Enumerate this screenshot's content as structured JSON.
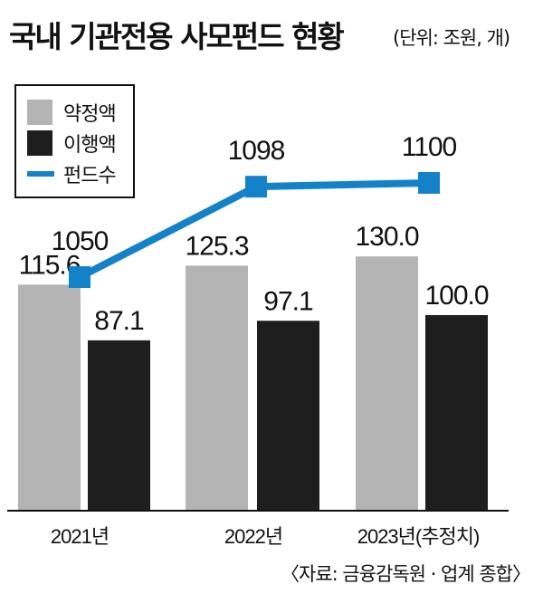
{
  "title": "국내 기관전용 사모펀드 현황",
  "unit": "(단위: 조원, 개)",
  "source": "〈자료: 금융감독원 · 업계 종합〉",
  "colors": {
    "committed": "#b4b4b4",
    "invested": "#1e1e1e",
    "funds": "#1482c8"
  },
  "chart_data": {
    "type": "bar",
    "categories": [
      "2021년",
      "2022년",
      "2023년(추정치)"
    ],
    "series": [
      {
        "name": "약정액",
        "type": "bar",
        "values": [
          115.6,
          125.3,
          130.0
        ],
        "labels": [
          "115.6",
          "125.3",
          "130.0"
        ]
      },
      {
        "name": "이행액",
        "type": "bar",
        "values": [
          87.1,
          97.1,
          100.0
        ],
        "labels": [
          "87.1",
          "97.1",
          "100.0"
        ]
      },
      {
        "name": "펀드수",
        "type": "line",
        "values": [
          1050,
          1098,
          1100
        ],
        "labels": [
          "1050",
          "1098",
          "1100"
        ]
      }
    ],
    "legend_position": "top-left",
    "grid": false
  }
}
